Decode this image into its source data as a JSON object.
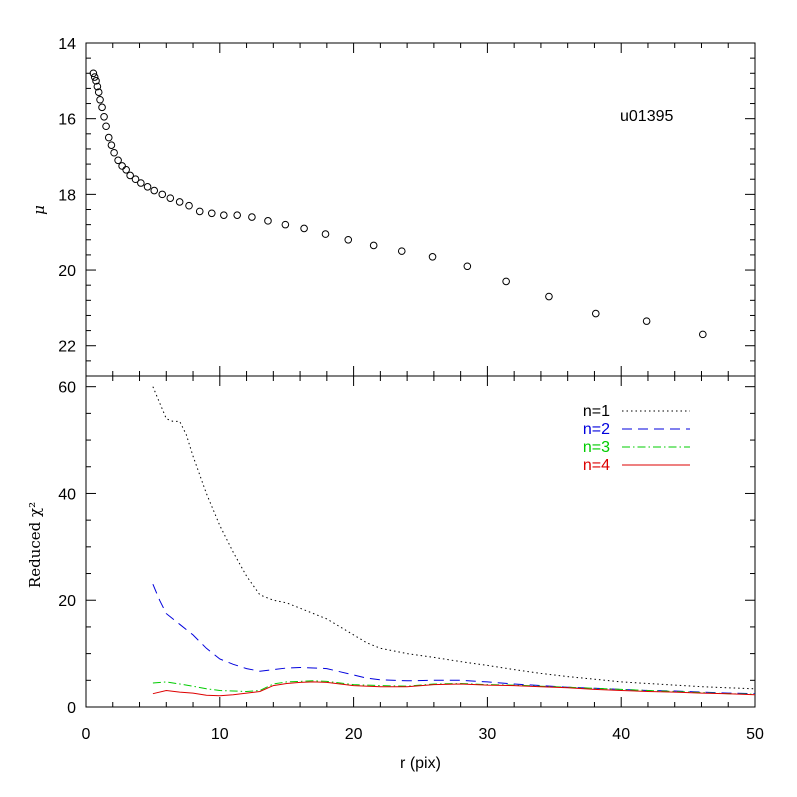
{
  "chart_data": [
    {
      "type": "scatter",
      "title": "",
      "annotation": "u01395",
      "xlabel": "",
      "ylabel": "μ",
      "xlim": [
        0,
        50
      ],
      "ylim": [
        22.8,
        14
      ],
      "y_inverted": true,
      "yticks": [
        14,
        16,
        18,
        20,
        22
      ],
      "marker": "open-circle",
      "points": [
        [
          0.55,
          14.8
        ],
        [
          0.65,
          14.9
        ],
        [
          0.75,
          15.0
        ],
        [
          0.85,
          15.15
        ],
        [
          0.95,
          15.3
        ],
        [
          1.05,
          15.5
        ],
        [
          1.2,
          15.7
        ],
        [
          1.35,
          15.95
        ],
        [
          1.5,
          16.2
        ],
        [
          1.7,
          16.5
        ],
        [
          1.9,
          16.7
        ],
        [
          2.1,
          16.9
        ],
        [
          2.4,
          17.1
        ],
        [
          2.7,
          17.25
        ],
        [
          3.0,
          17.35
        ],
        [
          3.3,
          17.5
        ],
        [
          3.7,
          17.6
        ],
        [
          4.1,
          17.7
        ],
        [
          4.6,
          17.8
        ],
        [
          5.1,
          17.9
        ],
        [
          5.7,
          18.0
        ],
        [
          6.3,
          18.1
        ],
        [
          7.0,
          18.2
        ],
        [
          7.7,
          18.3
        ],
        [
          8.5,
          18.45
        ],
        [
          9.4,
          18.5
        ],
        [
          10.3,
          18.55
        ],
        [
          11.3,
          18.55
        ],
        [
          12.4,
          18.6
        ],
        [
          13.6,
          18.7
        ],
        [
          14.9,
          18.8
        ],
        [
          16.3,
          18.9
        ],
        [
          17.9,
          19.05
        ],
        [
          19.6,
          19.2
        ],
        [
          21.5,
          19.35
        ],
        [
          23.6,
          19.5
        ],
        [
          25.9,
          19.65
        ],
        [
          28.5,
          19.9
        ],
        [
          31.4,
          20.3
        ],
        [
          34.6,
          20.7
        ],
        [
          38.1,
          21.15
        ],
        [
          41.9,
          21.35
        ],
        [
          46.1,
          21.7
        ]
      ]
    },
    {
      "type": "line",
      "title": "",
      "xlabel": "r (pix)",
      "ylabel": "Reduced χ²",
      "xlim": [
        0,
        50
      ],
      "ylim": [
        0,
        62
      ],
      "yticks": [
        0,
        20,
        40,
        60
      ],
      "xticks": [
        0,
        10,
        20,
        30,
        40,
        50
      ],
      "legend_position": "top-right",
      "series": [
        {
          "name": "n=1",
          "color": "#000000",
          "dash": "dotted",
          "points": [
            [
              5,
              60
            ],
            [
              5.5,
              57
            ],
            [
              6,
              54
            ],
            [
              6.5,
              53.5
            ],
            [
              7,
              53.5
            ],
            [
              7.5,
              51
            ],
            [
              8,
              47
            ],
            [
              9,
              40
            ],
            [
              10,
              34
            ],
            [
              11,
              29
            ],
            [
              12,
              24.5
            ],
            [
              13,
              21
            ],
            [
              14,
              20
            ],
            [
              15,
              19.5
            ],
            [
              16,
              18.5
            ],
            [
              17,
              17.5
            ],
            [
              18,
              16.5
            ],
            [
              19,
              15
            ],
            [
              20,
              13.5
            ],
            [
              21,
              12
            ],
            [
              22,
              11
            ],
            [
              24,
              10
            ],
            [
              26,
              9.3
            ],
            [
              28,
              8.5
            ],
            [
              30,
              7.8
            ],
            [
              32,
              7
            ],
            [
              34,
              6.3
            ],
            [
              36,
              5.7
            ],
            [
              38,
              5.2
            ],
            [
              40,
              4.7
            ],
            [
              42,
              4.4
            ],
            [
              44,
              4.1
            ],
            [
              46,
              3.8
            ],
            [
              48,
              3.6
            ],
            [
              50,
              3.4
            ]
          ]
        },
        {
          "name": "n=2",
          "color": "#0000dd",
          "dash": "dashed",
          "points": [
            [
              5,
              23
            ],
            [
              5.5,
              20
            ],
            [
              6,
              17.5
            ],
            [
              7,
              15.5
            ],
            [
              8,
              13.5
            ],
            [
              9,
              11
            ],
            [
              10,
              9
            ],
            [
              11,
              8
            ],
            [
              12,
              7.2
            ],
            [
              13,
              6.7
            ],
            [
              14,
              7
            ],
            [
              15,
              7.3
            ],
            [
              16,
              7.4
            ],
            [
              17,
              7.3
            ],
            [
              18,
              7.2
            ],
            [
              19,
              6.6
            ],
            [
              20,
              6
            ],
            [
              21,
              5.4
            ],
            [
              22,
              5.1
            ],
            [
              24,
              4.9
            ],
            [
              26,
              5
            ],
            [
              28,
              5
            ],
            [
              30,
              4.7
            ],
            [
              32,
              4.3
            ],
            [
              34,
              4
            ],
            [
              36,
              3.7
            ],
            [
              38,
              3.5
            ],
            [
              40,
              3.3
            ],
            [
              42,
              3.1
            ],
            [
              44,
              3
            ],
            [
              46,
              2.8
            ],
            [
              48,
              2.6
            ],
            [
              50,
              2.5
            ]
          ]
        },
        {
          "name": "n=3",
          "color": "#00cc00",
          "dash": "dashdot",
          "points": [
            [
              5,
              4.5
            ],
            [
              6,
              4.7
            ],
            [
              7,
              4.3
            ],
            [
              8,
              3.9
            ],
            [
              9,
              3.4
            ],
            [
              10,
              3.1
            ],
            [
              11,
              3
            ],
            [
              12,
              2.9
            ],
            [
              13,
              3.1
            ],
            [
              14,
              4.3
            ],
            [
              15,
              4.7
            ],
            [
              16,
              4.8
            ],
            [
              17,
              4.9
            ],
            [
              18,
              4.8
            ],
            [
              19,
              4.5
            ],
            [
              20,
              4.2
            ],
            [
              22,
              4
            ],
            [
              24,
              3.9
            ],
            [
              26,
              4.3
            ],
            [
              28,
              4.4
            ],
            [
              30,
              4.2
            ],
            [
              32,
              4.1
            ],
            [
              34,
              3.9
            ],
            [
              36,
              3.7
            ],
            [
              38,
              3.5
            ],
            [
              40,
              3.3
            ],
            [
              42,
              3.1
            ],
            [
              44,
              2.9
            ],
            [
              46,
              2.7
            ],
            [
              48,
              2.5
            ],
            [
              50,
              2.4
            ]
          ]
        },
        {
          "name": "n=4",
          "color": "#dd0000",
          "dash": "solid",
          "points": [
            [
              5,
              2.5
            ],
            [
              6,
              3.1
            ],
            [
              7,
              2.8
            ],
            [
              8,
              2.6
            ],
            [
              9,
              2.2
            ],
            [
              10,
              2.1
            ],
            [
              11,
              2.3
            ],
            [
              12,
              2.6
            ],
            [
              13,
              2.9
            ],
            [
              14,
              4
            ],
            [
              15,
              4.4
            ],
            [
              16,
              4.6
            ],
            [
              17,
              4.7
            ],
            [
              18,
              4.6
            ],
            [
              19,
              4.3
            ],
            [
              20,
              4
            ],
            [
              22,
              3.8
            ],
            [
              24,
              3.8
            ],
            [
              26,
              4.2
            ],
            [
              28,
              4.3
            ],
            [
              30,
              4.1
            ],
            [
              32,
              4
            ],
            [
              34,
              3.8
            ],
            [
              36,
              3.6
            ],
            [
              38,
              3.3
            ],
            [
              40,
              3.1
            ],
            [
              42,
              2.9
            ],
            [
              44,
              2.8
            ],
            [
              46,
              2.6
            ],
            [
              48,
              2.5
            ],
            [
              50,
              2.3
            ]
          ]
        }
      ]
    }
  ]
}
